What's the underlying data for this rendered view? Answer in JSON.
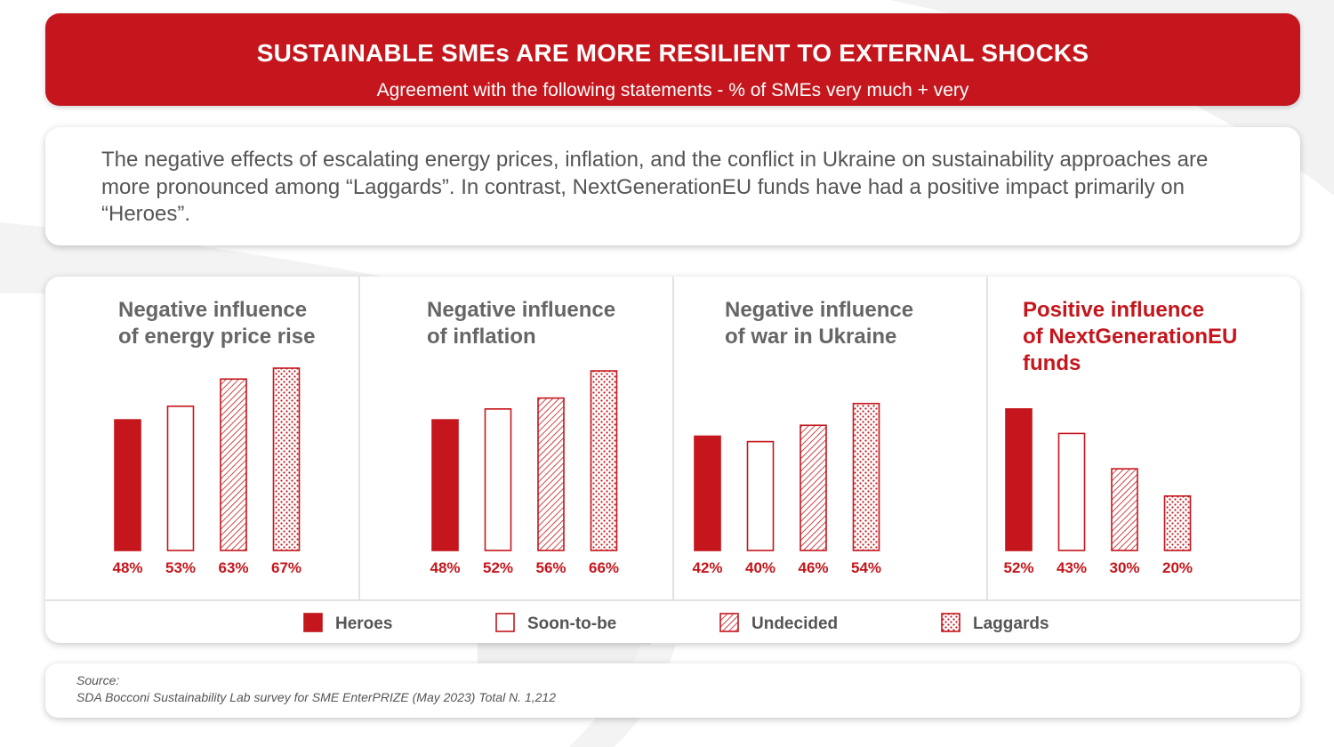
{
  "header": {
    "title": "SUSTAINABLE SMEs ARE MORE RESILIENT TO EXTERNAL SHOCKS",
    "subtitle": "Agreement with the following statements - % of SMEs very much + very"
  },
  "intro": {
    "text": "The negative effects of escalating energy prices, inflation, and the conflict in Ukraine on sustainability approaches are more pronounced among “Laggards”. In contrast, NextGenerationEU funds have had a positive impact primarily on “Heroes”."
  },
  "colors": {
    "accent": "#c4161c",
    "muted_text": "#666666",
    "text": "#555555"
  },
  "chart_data": [
    {
      "type": "bar",
      "title": "Negative influence of energy price rise",
      "title_lines": [
        "Negative influence",
        "of energy price rise"
      ],
      "title_color": "#666666",
      "categories": [
        "Heroes",
        "Soon-to-be",
        "Undecided",
        "Laggards"
      ],
      "values": [
        48,
        53,
        63,
        67
      ],
      "labels": [
        "48%",
        "53%",
        "63%",
        "67%"
      ]
    },
    {
      "type": "bar",
      "title": "Negative influence of inflation",
      "title_lines": [
        "Negative influence",
        "of inflation"
      ],
      "title_color": "#666666",
      "categories": [
        "Heroes",
        "Soon-to-be",
        "Undecided",
        "Laggards"
      ],
      "values": [
        48,
        52,
        56,
        66
      ],
      "labels": [
        "48%",
        "52%",
        "56%",
        "66%"
      ]
    },
    {
      "type": "bar",
      "title": "Negative influence of war in Ukraine",
      "title_lines": [
        "Negative influence",
        "of war in Ukraine"
      ],
      "title_color": "#666666",
      "categories": [
        "Heroes",
        "Soon-to-be",
        "Undecided",
        "Laggards"
      ],
      "values": [
        42,
        40,
        46,
        54
      ],
      "labels": [
        "42%",
        "40%",
        "46%",
        "54%"
      ]
    },
    {
      "type": "bar",
      "title": "Positive influence of NextGenerationEU funds",
      "title_lines": [
        "Positive influence",
        "of NextGenerationEU",
        "funds"
      ],
      "title_color": "#c4161c",
      "categories": [
        "Heroes",
        "Soon-to-be",
        "Undecided",
        "Laggards"
      ],
      "values": [
        52,
        43,
        30,
        20
      ],
      "labels": [
        "52%",
        "43%",
        "30%",
        "20%"
      ]
    }
  ],
  "legend": {
    "placement": "bottom",
    "items": [
      {
        "label": "Heroes",
        "style": "solid"
      },
      {
        "label": "Soon-to-be",
        "style": "outline"
      },
      {
        "label": "Undecided",
        "style": "hatch"
      },
      {
        "label": "Laggards",
        "style": "dots"
      }
    ]
  },
  "source": {
    "label": "Source:",
    "text": "SDA Bocconi Sustainability Lab survey for SME EnterPRIZE (May 2023) Total N. 1,212"
  }
}
